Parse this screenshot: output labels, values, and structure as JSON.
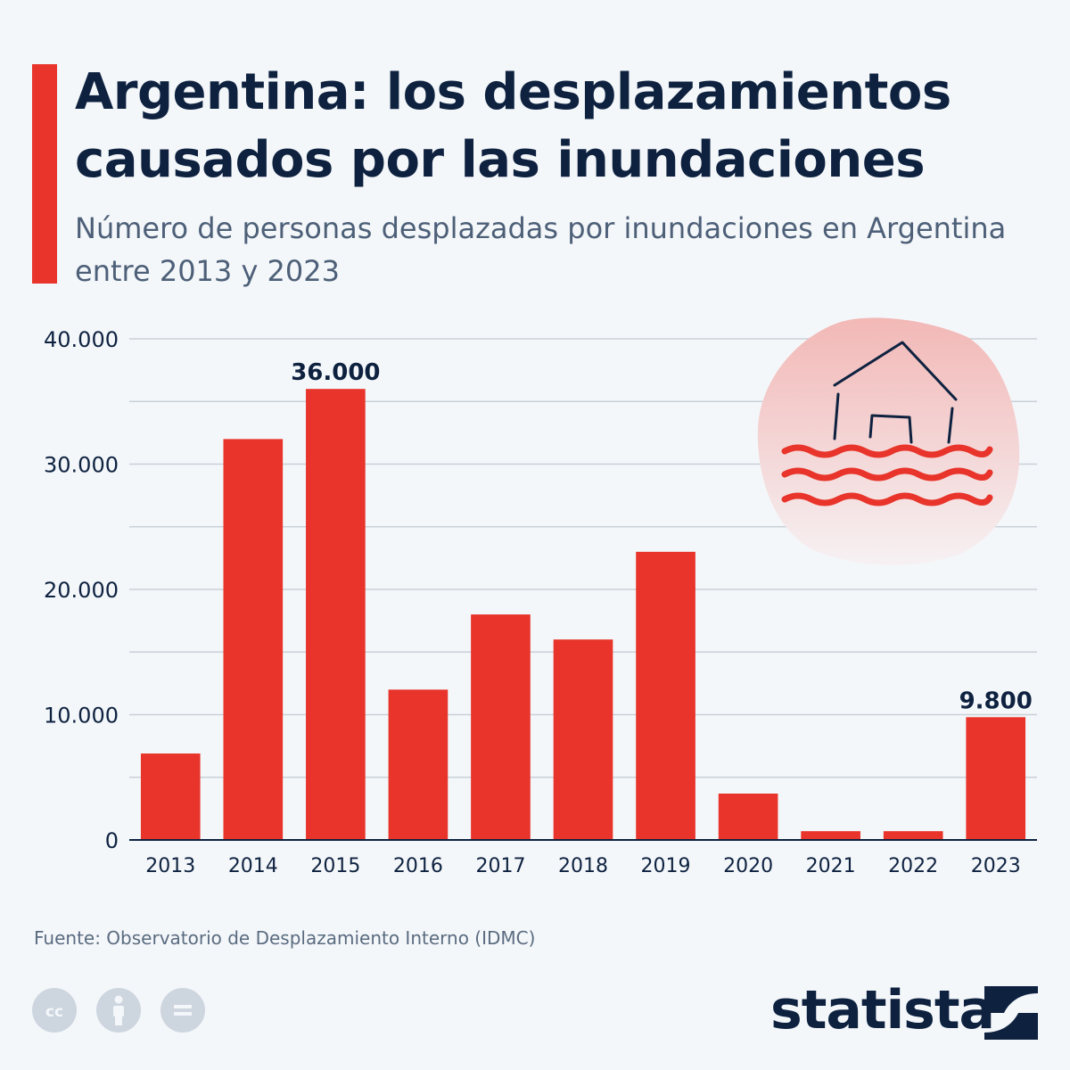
{
  "header": {
    "title": "Argentina: los desplazamientos causados por las inundaciones",
    "subtitle": "Número de personas desplazadas por inundaciones en Argentina entre 2013 y 2023"
  },
  "chart_data": {
    "type": "bar",
    "categories": [
      "2013",
      "2014",
      "2015",
      "2016",
      "2017",
      "2018",
      "2019",
      "2020",
      "2021",
      "2022",
      "2023"
    ],
    "values": [
      6900,
      32000,
      36000,
      12000,
      18000,
      16000,
      23000,
      3700,
      700,
      700,
      9800
    ],
    "data_labels": [
      {
        "index": 2,
        "text": "36.000"
      },
      {
        "index": 10,
        "text": "9.800"
      }
    ],
    "y_ticks": [
      {
        "value": 0,
        "label": "0"
      },
      {
        "value": 10000,
        "label": "10.000"
      },
      {
        "value": 20000,
        "label": "20.000"
      },
      {
        "value": 30000,
        "label": "30.000"
      },
      {
        "value": 40000,
        "label": "40.000"
      }
    ],
    "ylim": [
      0,
      40000
    ],
    "grid": true,
    "bar_color": "#e8342a",
    "illustration_icon": "flooded-house-icon"
  },
  "footer": {
    "source": "Fuente: Observatorio de Desplazamiento Interno (IDMC)",
    "license_icons": [
      "cc-icon",
      "attribution-icon",
      "no-derivatives-icon"
    ],
    "brand": "statista",
    "brand_logo": "statista-logo-icon"
  },
  "colors": {
    "accent": "#e8342a",
    "title": "#0e2240",
    "subtitle": "#4d6078",
    "background": "#f4f7fa"
  }
}
